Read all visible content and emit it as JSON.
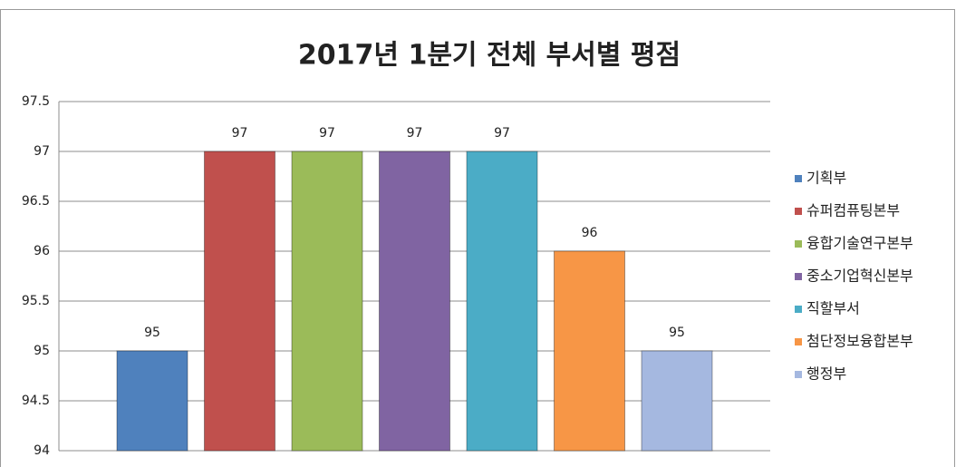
{
  "chart_data": {
    "type": "bar",
    "title": "2017년 1분기 전체 부서별 평점",
    "series": [
      {
        "name": "기획부",
        "color": "#4f81bd",
        "values": [
          95
        ]
      },
      {
        "name": "슈퍼컴퓨팅본부",
        "color": "#c0504d",
        "values": [
          97
        ]
      },
      {
        "name": "융합기술연구본부",
        "color": "#9bbb59",
        "values": [
          97
        ]
      },
      {
        "name": "중소기업혁신본부",
        "color": "#8064a2",
        "values": [
          97
        ]
      },
      {
        "name": "직할부서",
        "color": "#4bacc6",
        "values": [
          97
        ]
      },
      {
        "name": "첨단정보융합본부",
        "color": "#f79646",
        "values": [
          96
        ]
      },
      {
        "name": "행정부",
        "color": "#a5b8e0",
        "values": [
          95
        ]
      }
    ],
    "ylim": [
      94,
      97.5
    ],
    "yticks": [
      94,
      94.5,
      95,
      95.5,
      96,
      96.5,
      97,
      97.5
    ],
    "grid": true,
    "legend": "right"
  }
}
